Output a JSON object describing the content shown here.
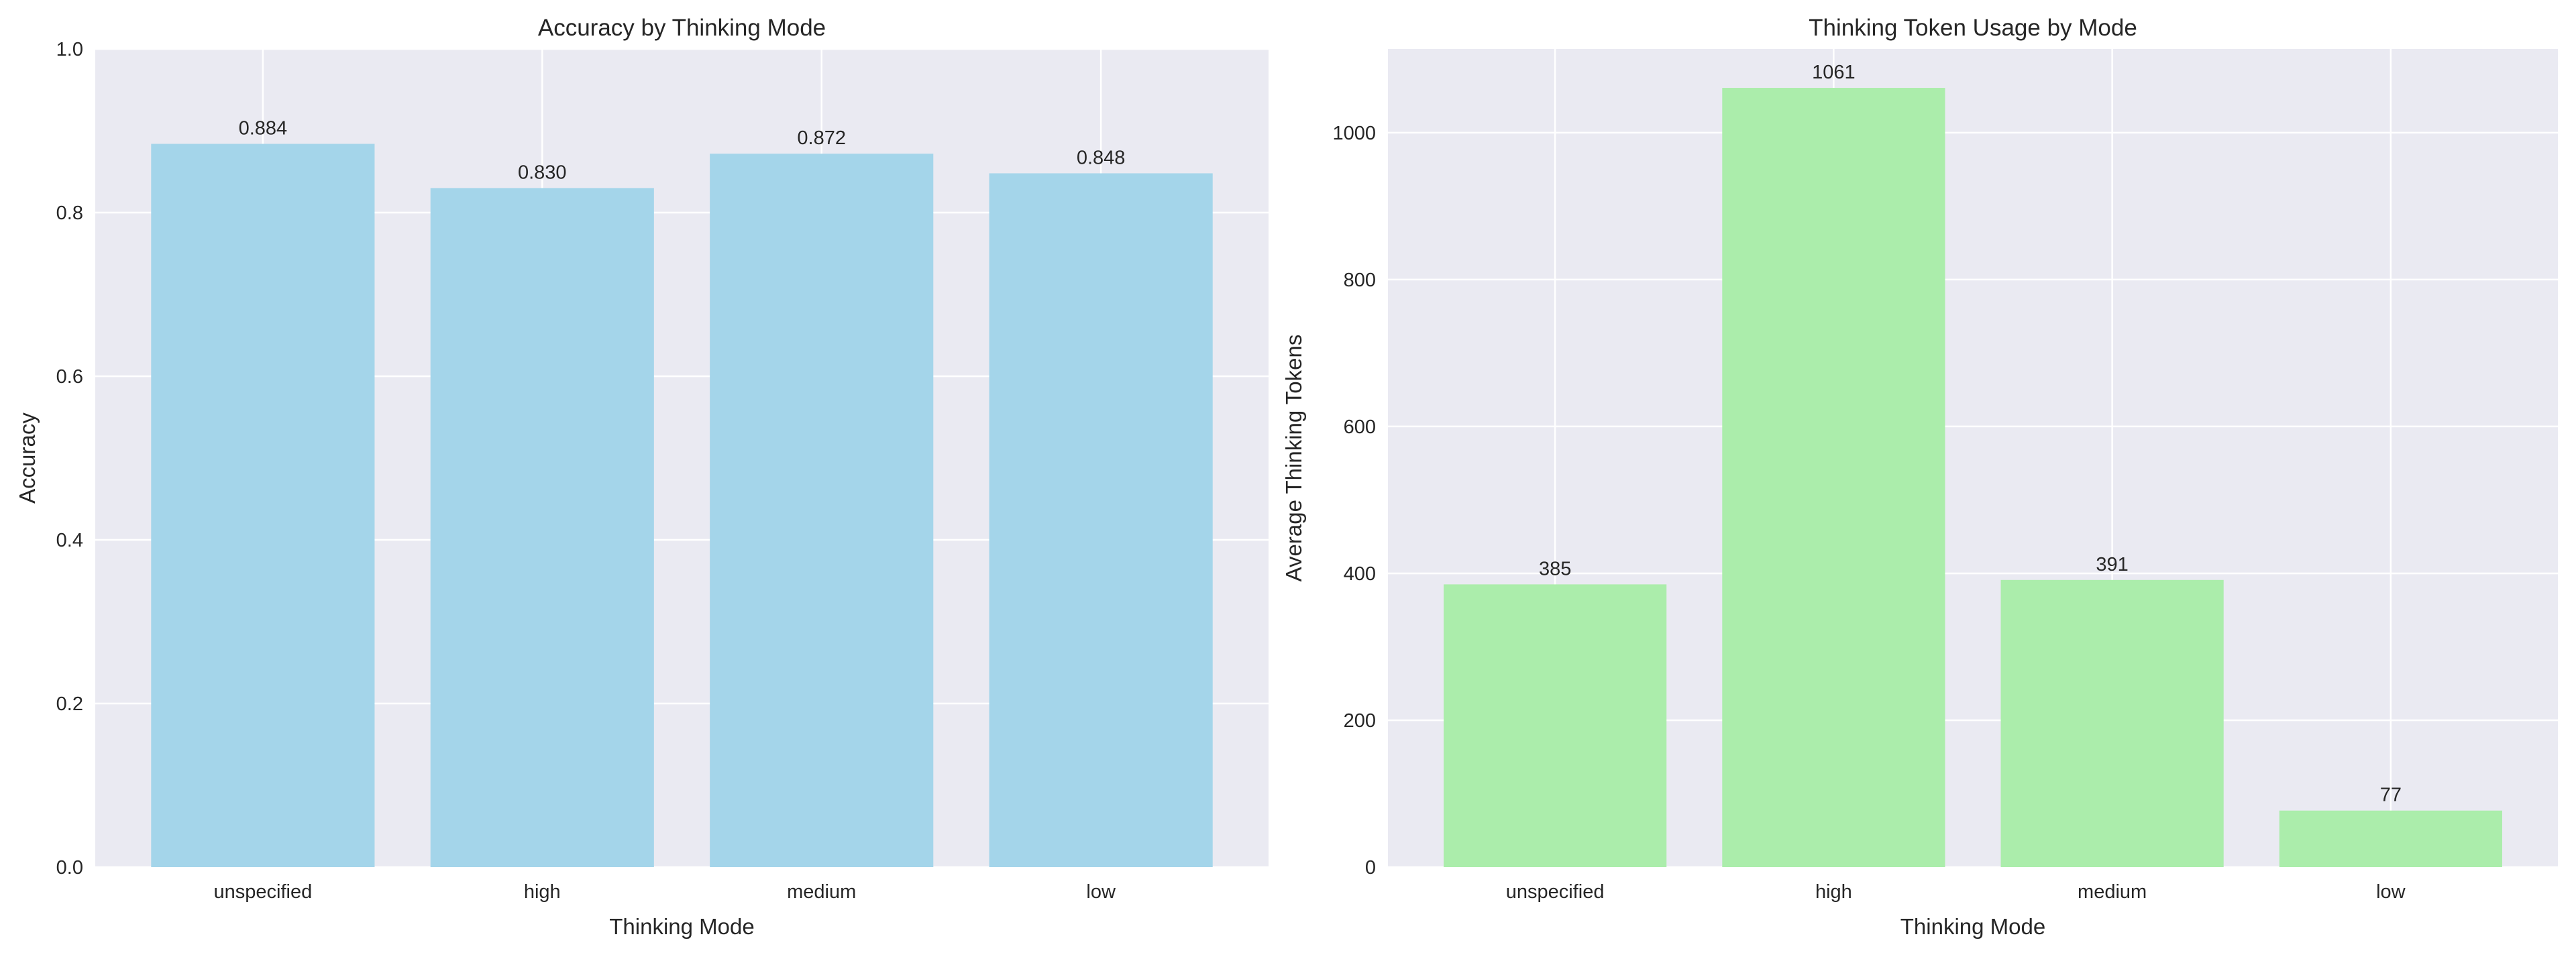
{
  "chart_data": [
    {
      "type": "bar",
      "title": "Accuracy by Thinking Mode",
      "xlabel": "Thinking Mode",
      "ylabel": "Accuracy",
      "categories": [
        "unspecified",
        "high",
        "medium",
        "low"
      ],
      "values": [
        0.884,
        0.83,
        0.872,
        0.848
      ],
      "value_labels": [
        "0.884",
        "0.830",
        "0.872",
        "0.848"
      ],
      "ylim": [
        0,
        1.0
      ],
      "yticks": [
        0.0,
        0.2,
        0.4,
        0.6,
        0.8,
        1.0
      ],
      "ytick_labels": [
        "0.0",
        "0.2",
        "0.4",
        "0.6",
        "0.8",
        "1.0"
      ],
      "color": "#a4d5ea",
      "grid": true
    },
    {
      "type": "bar",
      "title": "Thinking Token Usage by Mode",
      "xlabel": "Thinking Mode",
      "ylabel": "Average Thinking Tokens",
      "categories": [
        "unspecified",
        "high",
        "medium",
        "low"
      ],
      "values": [
        385,
        1061,
        391,
        77
      ],
      "value_labels": [
        "385",
        "1061",
        "391",
        "77"
      ],
      "ylim": [
        0,
        1114
      ],
      "yticks": [
        0,
        200,
        400,
        600,
        800,
        1000
      ],
      "ytick_labels": [
        "0",
        "200",
        "400",
        "600",
        "800",
        "1000"
      ],
      "color": "#abedab",
      "grid": true
    }
  ]
}
